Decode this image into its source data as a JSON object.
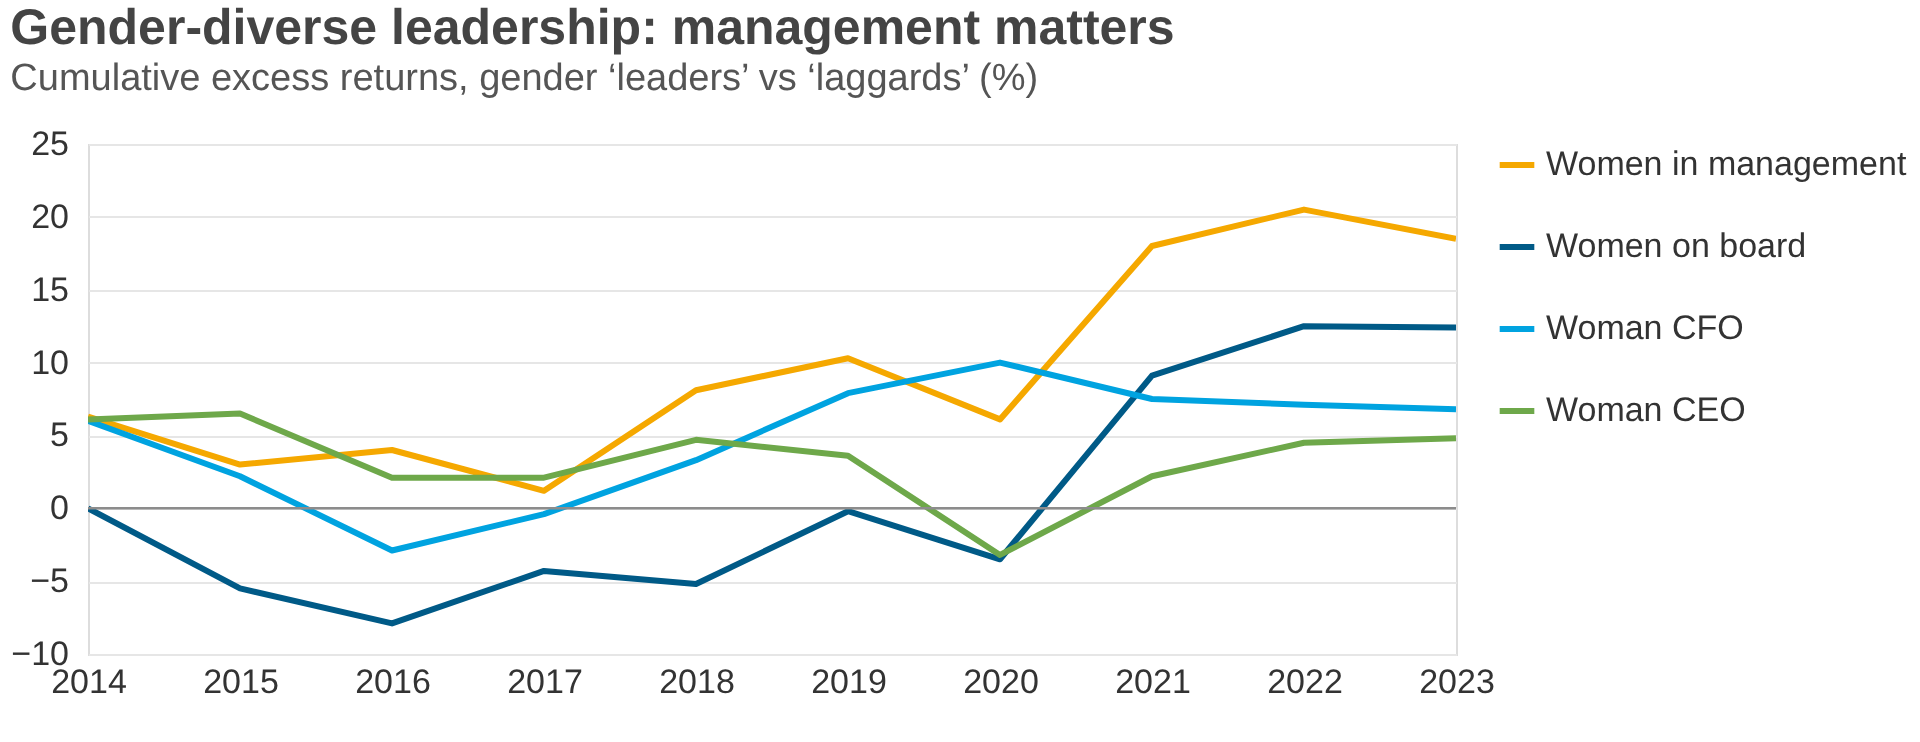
{
  "chart_data": {
    "type": "line",
    "title": "Gender-diverse leadership: management matters",
    "subtitle": "Cumulative excess returns, gender ‘leaders’ vs ‘laggards’ (%)",
    "x": [
      2014,
      2015,
      2016,
      2017,
      2018,
      2019,
      2020,
      2021,
      2022,
      2023
    ],
    "series": [
      {
        "name": "Women in management",
        "color": "#f5a800",
        "values": [
          6.3,
          3.0,
          4.0,
          1.2,
          8.1,
          10.3,
          6.1,
          18.0,
          20.5,
          18.5
        ]
      },
      {
        "name": "Women on board",
        "color": "#005a87",
        "values": [
          0,
          -5.5,
          -7.9,
          -4.3,
          -5.2,
          -0.2,
          -3.5,
          9.1,
          12.5,
          12.4
        ]
      },
      {
        "name": "Woman CFO",
        "color": "#00a3e0",
        "values": [
          6.0,
          2.2,
          -2.9,
          -0.4,
          3.3,
          7.9,
          10.0,
          7.5,
          7.1,
          6.8
        ]
      },
      {
        "name": "Woman CEO",
        "color": "#6ea84a",
        "values": [
          6.1,
          6.5,
          2.1,
          2.1,
          4.7,
          3.6,
          -3.2,
          2.2,
          4.5,
          4.8
        ]
      }
    ],
    "xlim": [
      2014,
      2023
    ],
    "xticks": [
      2014,
      2015,
      2016,
      2017,
      2018,
      2019,
      2020,
      2021,
      2022,
      2023
    ],
    "ylim": [
      -10,
      25
    ],
    "yticks": [
      -10,
      -5,
      0,
      5,
      10,
      15,
      20,
      25
    ],
    "grid": "y",
    "legend": "right",
    "marker": "none",
    "line_style": "solid",
    "ref_lines": [
      {
        "axis": "y",
        "value": 0,
        "color": "#8c8c8c"
      }
    ]
  }
}
